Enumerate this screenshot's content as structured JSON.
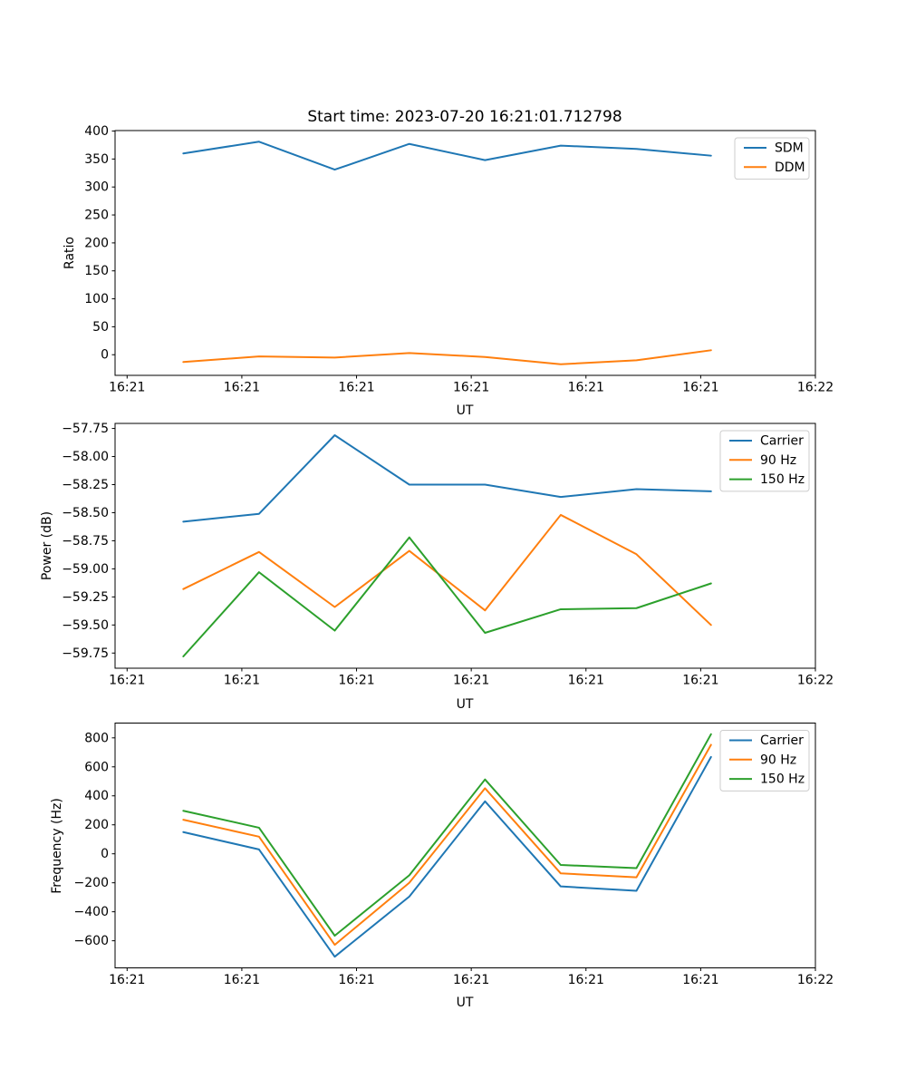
{
  "title": "Start time: 2023-07-20 16:21:01.712798",
  "colors": {
    "blue": "#1f77b4",
    "orange": "#ff7f0e",
    "green": "#2ca02c"
  },
  "chart_data": [
    {
      "type": "line",
      "ylabel": "Ratio",
      "xlabel": "UT",
      "x_tick_labels": [
        "16:21",
        "16:21",
        "16:21",
        "16:21",
        "16:21",
        "16:21",
        "16:22"
      ],
      "x_tick_seconds": [
        0,
        10,
        20,
        30,
        40,
        50,
        60
      ],
      "xlim_seconds": [
        -1.05,
        60
      ],
      "x_seconds": [
        4.9,
        11.5,
        18.1,
        24.6,
        31.2,
        37.8,
        44.4,
        50.9
      ],
      "ylim": [
        -36.9,
        400.9
      ],
      "y_tick_values": [
        400,
        350,
        300,
        250,
        200,
        150,
        100,
        50,
        0
      ],
      "y_tick_labels": [
        "400",
        "350",
        "300",
        "250",
        "200",
        "150",
        "100",
        "50",
        "0"
      ],
      "grid": false,
      "legend_position": "upper right",
      "series": [
        {
          "name": "SDM",
          "color": "#1f77b4",
          "values": [
            360,
            381,
            331,
            377,
            348,
            374,
            368,
            356
          ]
        },
        {
          "name": "DDM",
          "color": "#ff7f0e",
          "values": [
            -13,
            -3,
            -5,
            3,
            -4,
            -17,
            -10,
            8
          ]
        }
      ]
    },
    {
      "type": "line",
      "ylabel": "Power (dB)",
      "xlabel": "UT",
      "x_tick_labels": [
        "16:21",
        "16:21",
        "16:21",
        "16:21",
        "16:21",
        "16:21",
        "16:22"
      ],
      "x_tick_seconds": [
        0,
        10,
        20,
        30,
        40,
        50,
        60
      ],
      "xlim_seconds": [
        -1.05,
        60
      ],
      "x_seconds": [
        4.9,
        11.5,
        18.1,
        24.6,
        31.2,
        37.8,
        44.4,
        50.9
      ],
      "ylim": [
        -59.885,
        -57.705
      ],
      "y_tick_values": [
        -57.75,
        -58.0,
        -58.25,
        -58.5,
        -58.75,
        -59.0,
        -59.25,
        -59.5,
        -59.75
      ],
      "y_tick_labels": [
        "−57.75",
        "−58.00",
        "−58.25",
        "−58.50",
        "−58.75",
        "−59.00",
        "−59.25",
        "−59.50",
        "−59.75"
      ],
      "grid": false,
      "legend_position": "upper right",
      "series": [
        {
          "name": "Carrier",
          "color": "#1f77b4",
          "values": [
            -58.58,
            -58.51,
            -57.81,
            -58.25,
            -58.25,
            -58.36,
            -58.29,
            -58.31
          ]
        },
        {
          "name": "90 Hz",
          "color": "#ff7f0e",
          "values": [
            -59.18,
            -58.85,
            -59.34,
            -58.84,
            -59.37,
            -58.52,
            -58.87,
            -59.5
          ]
        },
        {
          "name": "150 Hz",
          "color": "#2ca02c",
          "values": [
            -59.78,
            -59.03,
            -59.55,
            -58.72,
            -59.57,
            -59.36,
            -59.35,
            -59.13
          ]
        }
      ]
    },
    {
      "type": "line",
      "ylabel": "Frequency (Hz)",
      "xlabel": "UT",
      "x_tick_labels": [
        "16:21",
        "16:21",
        "16:21",
        "16:21",
        "16:21",
        "16:21",
        "16:22"
      ],
      "x_tick_seconds": [
        0,
        10,
        20,
        30,
        40,
        50,
        60
      ],
      "xlim_seconds": [
        -1.05,
        60
      ],
      "x_seconds": [
        4.9,
        11.5,
        18.1,
        24.6,
        31.2,
        37.8,
        44.4,
        50.9
      ],
      "ylim": [
        -787,
        902
      ],
      "y_tick_values": [
        800,
        600,
        400,
        200,
        0,
        -200,
        -400,
        -600
      ],
      "y_tick_labels": [
        "800",
        "600",
        "400",
        "200",
        "0",
        "−200",
        "−400",
        "−600"
      ],
      "grid": false,
      "legend_position": "upper right",
      "series": [
        {
          "name": "Carrier",
          "color": "#1f77b4",
          "values": [
            150,
            30,
            -710,
            -295,
            362,
            -225,
            -255,
            668
          ]
        },
        {
          "name": "90 Hz",
          "color": "#ff7f0e",
          "values": [
            235,
            118,
            -628,
            -200,
            452,
            -135,
            -162,
            752
          ]
        },
        {
          "name": "150 Hz",
          "color": "#2ca02c",
          "values": [
            297,
            180,
            -565,
            -148,
            513,
            -77,
            -99,
            825
          ]
        }
      ]
    }
  ]
}
